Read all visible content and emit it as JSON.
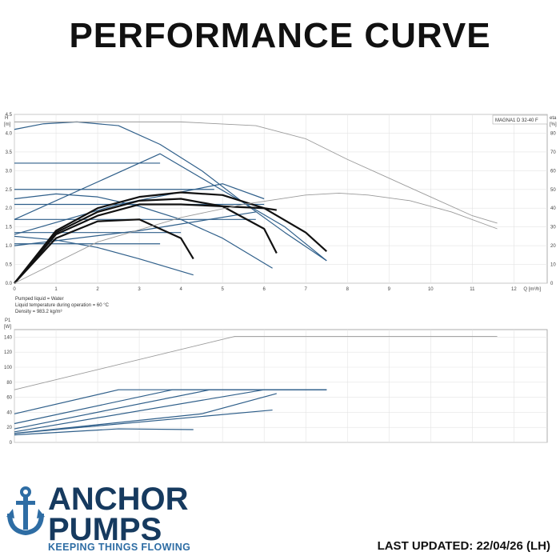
{
  "page": {
    "title": "PERFORMANCE CURVE",
    "last_updated": "LAST UPDATED: 22/04/26 (LH)"
  },
  "brand": {
    "name_line1": "ANCHOR",
    "name_line2": "PUMPS",
    "tagline": "KEEPING THINGS FLOWING",
    "logo_icon": "anchor-icon",
    "colors": {
      "navy": "#163a5f",
      "blue": "#2e6da4"
    }
  },
  "chart_data": [
    {
      "type": "line",
      "label": "MAGNA1 D 32-40 F",
      "y_unit_label": "H\n[m]",
      "y2_unit_label": "eta\n[%]",
      "x_unit_label": "Q [m³/h]",
      "xlim": [
        0,
        12.8
      ],
      "ylim": [
        0,
        4.5
      ],
      "y2lim": [
        0,
        90
      ],
      "x_ticks": [
        0,
        1,
        2,
        3,
        4,
        5,
        6,
        7,
        8,
        9,
        10,
        11,
        12
      ],
      "y_ticks": [
        0.0,
        0.5,
        1.0,
        1.5,
        2.0,
        2.5,
        3.0,
        3.5,
        4.0,
        4.5
      ],
      "y2_ticks": [
        0,
        10,
        20,
        30,
        40,
        50,
        60,
        70,
        80
      ],
      "grid": true,
      "notes": [
        "Pumped liquid = Water",
        "Liquid temperature during operation = 60 °C",
        "Density = 983.2 kg/m³"
      ],
      "colors": {
        "blue": "#2f5f8a",
        "black": "#111111",
        "grey": "#9a9a9a"
      },
      "series": [
        {
          "color": "blue",
          "x": [
            0,
            0.7,
            1.5,
            2.5,
            3.5,
            4.5,
            5.5,
            6.5,
            7.5
          ],
          "y": [
            4.1,
            4.25,
            4.3,
            4.2,
            3.7,
            3.0,
            2.15,
            1.35,
            0.6
          ]
        },
        {
          "color": "blue",
          "x": [
            0,
            3.5
          ],
          "y": [
            3.2,
            3.2
          ]
        },
        {
          "color": "blue",
          "x": [
            0,
            4.8
          ],
          "y": [
            2.5,
            2.5
          ]
        },
        {
          "color": "blue",
          "x": [
            0,
            6.0
          ],
          "y": [
            2.1,
            2.1
          ]
        },
        {
          "color": "blue",
          "x": [
            0,
            5.8
          ],
          "y": [
            1.7,
            1.7
          ]
        },
        {
          "color": "blue",
          "x": [
            0,
            4.0
          ],
          "y": [
            1.35,
            1.35
          ]
        },
        {
          "color": "blue",
          "x": [
            0,
            3.5
          ],
          "y": [
            1.05,
            1.05
          ]
        },
        {
          "color": "blue",
          "x": [
            0,
            1.0,
            2.0,
            3.0,
            4.3
          ],
          "y": [
            1.25,
            1.15,
            0.95,
            0.65,
            0.22
          ]
        },
        {
          "color": "blue",
          "x": [
            0,
            1.0,
            2.0,
            3.0,
            4.0,
            5.0,
            6.2
          ],
          "y": [
            2.25,
            2.38,
            2.3,
            2.05,
            1.7,
            1.2,
            0.4
          ]
        },
        {
          "color": "blue",
          "x": [
            0,
            3.5,
            6.5,
            7.5
          ],
          "y": [
            1.7,
            3.45,
            1.5,
            0.6
          ]
        },
        {
          "color": "blue",
          "x": [
            0,
            2.5,
            5.0,
            6.0
          ],
          "y": [
            1.3,
            2.1,
            2.65,
            2.25
          ]
        },
        {
          "color": "blue",
          "x": [
            0,
            3.0,
            5.8
          ],
          "y": [
            1.0,
            1.4,
            1.9
          ]
        },
        {
          "color": "black",
          "x": [
            0,
            1.0,
            2.0,
            3.0,
            4.0,
            5.0,
            6.0,
            7.0,
            7.5
          ],
          "y": [
            0,
            1.4,
            2.0,
            2.3,
            2.42,
            2.35,
            2.0,
            1.35,
            0.85
          ]
        },
        {
          "color": "black",
          "x": [
            0,
            1.0,
            2.0,
            3.0,
            4.0,
            5.0,
            6.0,
            6.3
          ],
          "y": [
            0,
            1.35,
            1.9,
            2.2,
            2.25,
            2.05,
            1.45,
            0.8
          ]
        },
        {
          "color": "black",
          "x": [
            0,
            1.0,
            2.0,
            3.0,
            4.0,
            4.3
          ],
          "y": [
            0,
            1.2,
            1.65,
            1.7,
            1.2,
            0.65
          ]
        },
        {
          "color": "black",
          "x": [
            0,
            1.0,
            2.0,
            3.0,
            4.0,
            5.0,
            6.0,
            6.3
          ],
          "y": [
            0,
            1.3,
            1.8,
            2.1,
            2.1,
            2.05,
            2.0,
            1.95
          ]
        },
        {
          "color": "grey",
          "x": [
            0,
            2.0,
            4.0,
            5.8,
            7.0,
            8.0,
            9.0,
            10.0,
            11.0,
            11.6
          ],
          "y": [
            4.3,
            4.3,
            4.3,
            4.2,
            3.85,
            3.3,
            2.8,
            2.3,
            1.8,
            1.6
          ]
        },
        {
          "color": "grey",
          "x": [
            0,
            2.0,
            4.0,
            5.5,
            7.0,
            7.8,
            8.5,
            9.5,
            10.5,
            11.6
          ],
          "y": [
            0,
            1.1,
            1.75,
            2.1,
            2.35,
            2.4,
            2.35,
            2.2,
            1.9,
            1.45
          ]
        }
      ]
    },
    {
      "type": "line",
      "y_unit_label": "P1\n[W]",
      "xlim": [
        0,
        12.8
      ],
      "ylim": [
        0,
        150
      ],
      "y_ticks": [
        0,
        20,
        40,
        60,
        80,
        100,
        120,
        140
      ],
      "grid": true,
      "colors": {
        "blue": "#2f5f8a",
        "grey": "#9a9a9a"
      },
      "series": [
        {
          "color": "grey",
          "x": [
            0,
            5.3,
            11.6
          ],
          "y": [
            70,
            141,
            141
          ]
        },
        {
          "color": "blue",
          "x": [
            0,
            2.5,
            7.5
          ],
          "y": [
            38,
            70,
            70
          ]
        },
        {
          "color": "blue",
          "x": [
            0,
            3.8,
            7.5
          ],
          "y": [
            25,
            70,
            70
          ]
        },
        {
          "color": "blue",
          "x": [
            0,
            4.7,
            7.5
          ],
          "y": [
            18,
            70,
            70
          ]
        },
        {
          "color": "blue",
          "x": [
            0,
            6.0,
            7.5
          ],
          "y": [
            14,
            70,
            70
          ]
        },
        {
          "color": "blue",
          "x": [
            0,
            4.5,
            6.3
          ],
          "y": [
            12,
            38,
            65
          ]
        },
        {
          "color": "blue",
          "x": [
            0,
            6.2
          ],
          "y": [
            12,
            43
          ]
        },
        {
          "color": "blue",
          "x": [
            0,
            2.5,
            4.3
          ],
          "y": [
            10,
            18,
            17
          ]
        }
      ]
    }
  ]
}
